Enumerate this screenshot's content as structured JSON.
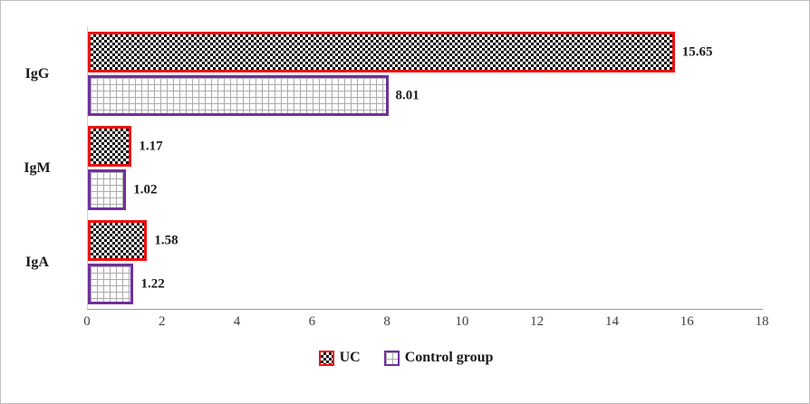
{
  "chart_data": {
    "type": "bar",
    "orientation": "horizontal",
    "title": "",
    "categories": [
      "IgG",
      "IgM",
      "IgA"
    ],
    "series": [
      {
        "name": "UC",
        "values": [
          15.65,
          1.17,
          1.58
        ],
        "border_color": "#ee1111",
        "pattern": "checker"
      },
      {
        "name": "Control group",
        "values": [
          8.01,
          1.02,
          1.22
        ],
        "border_color": "#7030a0",
        "pattern": "grid"
      }
    ],
    "xlim": [
      0,
      18
    ],
    "x_ticks": [
      0,
      2,
      4,
      6,
      8,
      10,
      12,
      14,
      16,
      18
    ],
    "grid": false,
    "legend_position": "bottom",
    "data_labels_shown": true,
    "axis_color": "#9a9a9a",
    "label_color": "#1a1a1a",
    "tick_color": "#404040"
  }
}
